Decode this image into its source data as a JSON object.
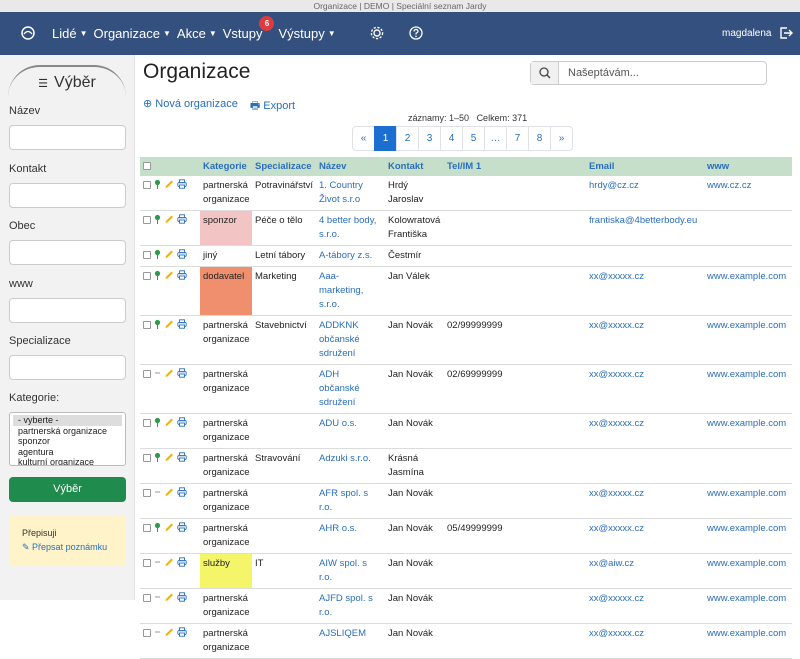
{
  "window_title": "Organizace | DEMO | Speciální seznam Jardy",
  "nav": {
    "items": [
      {
        "label": "Lidé",
        "dropdown": true
      },
      {
        "label": "Organizace",
        "dropdown": true
      },
      {
        "label": "Akce",
        "dropdown": true
      },
      {
        "label": "Vstupy",
        "badge": "6"
      },
      {
        "label": "Výstupy",
        "dropdown": true
      }
    ],
    "user": "magdalena"
  },
  "sidebar": {
    "title": "Výběr",
    "fields": [
      "Název",
      "Kontakt",
      "Obec",
      "www",
      "Specializace"
    ],
    "category_label": "Kategorie:",
    "category_options": [
      "- vyberte -",
      "partnerská organizace",
      "sponzor",
      "agentura",
      "kulturní organizace"
    ],
    "button": "Výběr",
    "note": {
      "title": "Přepisuji",
      "link": "Přepsat poznámku"
    }
  },
  "header": {
    "title": "Organizace",
    "search_placeholder": "Našeptávám..."
  },
  "actions": [
    "Nová organizace",
    "Export"
  ],
  "records": {
    "range": "záznamy: 1–50",
    "total": "Celkem: 371"
  },
  "pagination": {
    "pages": [
      "«",
      "1",
      "2",
      "3",
      "4",
      "5",
      "…",
      "7",
      "8",
      "»"
    ],
    "active_index": 1
  },
  "table": {
    "columns": [
      "Kategorie",
      "Specializace",
      "Název",
      "Kontakt",
      "Tel/IM 1",
      "Email",
      "www"
    ],
    "rows": [
      {
        "pin": true,
        "cells": [
          "partnerská organizace",
          "Potravinářství",
          "1. Country Život s.r.o",
          "Hrdý Jaroslav",
          null,
          "hrdy@cz.cz",
          "www.cz.cz"
        ]
      },
      {
        "pin": true,
        "highlight": "#f3c4c4",
        "cells": [
          "sponzor",
          "Péče o tělo",
          "4 better body, s.r.o.",
          "Kolowratová Františka",
          null,
          "frantiska@4betterbody.eu",
          null
        ]
      },
      {
        "pin": true,
        "cells": [
          "jiný",
          "Letní tábory",
          "A-tábory z.s.",
          "Čestmír",
          null,
          null,
          null
        ]
      },
      {
        "pin": true,
        "highlight": "#f08f6e",
        "cells": [
          "dodavatel",
          "Marketing",
          "Aaa-marketing, s.r.o.",
          "Jan Válek",
          null,
          "xx@xxxxx.cz",
          "www.example.com"
        ]
      },
      {
        "pin": true,
        "cells": [
          "partnerská organizace",
          "Stavebnictví",
          "ADDKNK občanské sdružení",
          "Jan Novák",
          "02/99999999",
          "xx@xxxxx.cz",
          "www.example.com"
        ]
      },
      {
        "pin": false,
        "cells": [
          "partnerská organizace",
          null,
          "ADH občanské sdružení",
          "Jan Novák",
          "02/69999999",
          "xx@xxxxx.cz",
          "www.example.com"
        ]
      },
      {
        "pin": true,
        "cells": [
          "partnerská organizace",
          null,
          "ADU o.s.",
          "Jan Novák",
          null,
          "xx@xxxxx.cz",
          "www.example.com"
        ]
      },
      {
        "pin": true,
        "cells": [
          "partnerská organizace",
          "Stravování",
          "Adzuki s.r.o.",
          "Krásná Jasmína",
          null,
          null,
          null
        ]
      },
      {
        "pin": false,
        "cells": [
          "partnerská organizace",
          null,
          "AFR spol. s r.o.",
          "Jan Novák",
          null,
          "xx@xxxxx.cz",
          "www.example.com"
        ]
      },
      {
        "pin": true,
        "cells": [
          "partnerská organizace",
          null,
          "AHR o.s.",
          "Jan Novák",
          "05/49999999",
          "xx@xxxxx.cz",
          "www.example.com"
        ]
      },
      {
        "pin": false,
        "highlight": "#f5f56a",
        "cells": [
          "služby",
          "IT",
          "AIW spol. s r.o.",
          "Jan Novák",
          null,
          "xx@aiw.cz",
          "www.example.com"
        ]
      },
      {
        "pin": false,
        "cells": [
          "partnerská organizace",
          null,
          "AJFD spol. s r.o.",
          "Jan Novák",
          null,
          "xx@xxxxx.cz",
          "www.example.com"
        ]
      },
      {
        "pin": false,
        "cells": [
          "partnerská organizace",
          null,
          "AJSLIQEM",
          "Jan Novák",
          null,
          "xx@xxxxx.cz",
          "www.example.com"
        ]
      }
    ]
  }
}
